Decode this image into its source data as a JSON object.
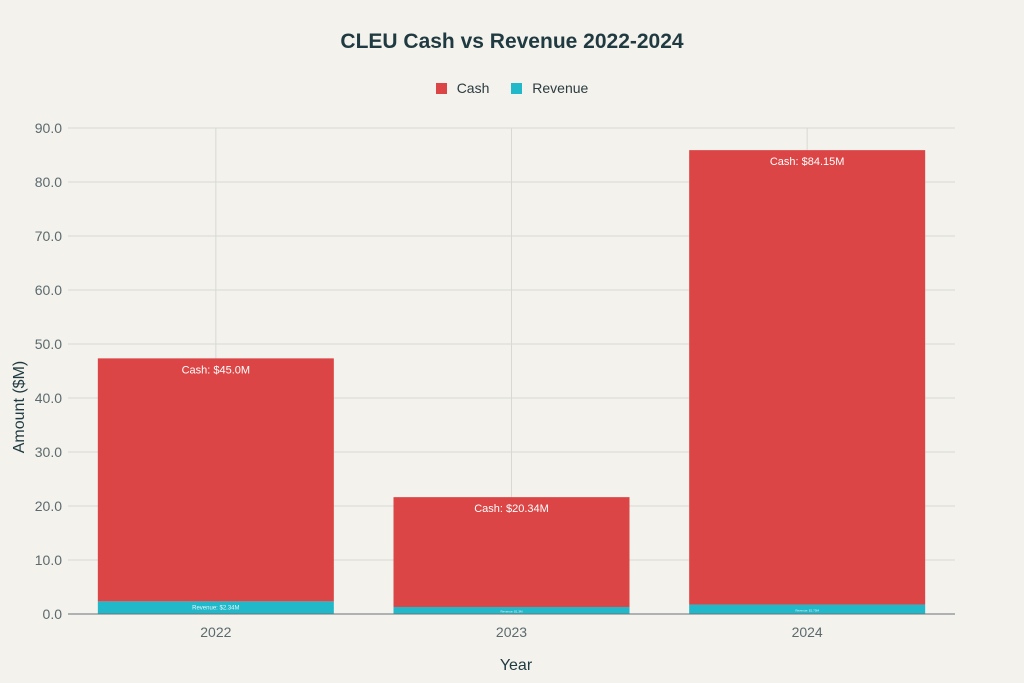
{
  "chart_data": {
    "type": "bar",
    "stacked": true,
    "title": "CLEU Cash vs Revenue 2022-2024",
    "xlabel": "Year",
    "ylabel": "Amount ($M)",
    "categories": [
      "2022",
      "2023",
      "2024"
    ],
    "ylim": [
      0,
      90
    ],
    "yticks": [
      "0.0",
      "10.0",
      "20.0",
      "30.0",
      "40.0",
      "50.0",
      "60.0",
      "70.0",
      "80.0",
      "90.0"
    ],
    "grid": true,
    "legend_position": "top",
    "series": [
      {
        "name": "Revenue",
        "color": "#21b8c9",
        "values": [
          2.34,
          1.3,
          1.75
        ],
        "labels": [
          "Revenue: $2.34M",
          "Revenue: $1.3M",
          "Revenue: $1.75M"
        ]
      },
      {
        "name": "Cash",
        "color": "#db4545",
        "values": [
          45.0,
          20.34,
          84.15
        ],
        "labels": [
          "Cash: $45.0M",
          "Cash: $20.34M",
          "Cash: $84.15M"
        ]
      }
    ]
  }
}
